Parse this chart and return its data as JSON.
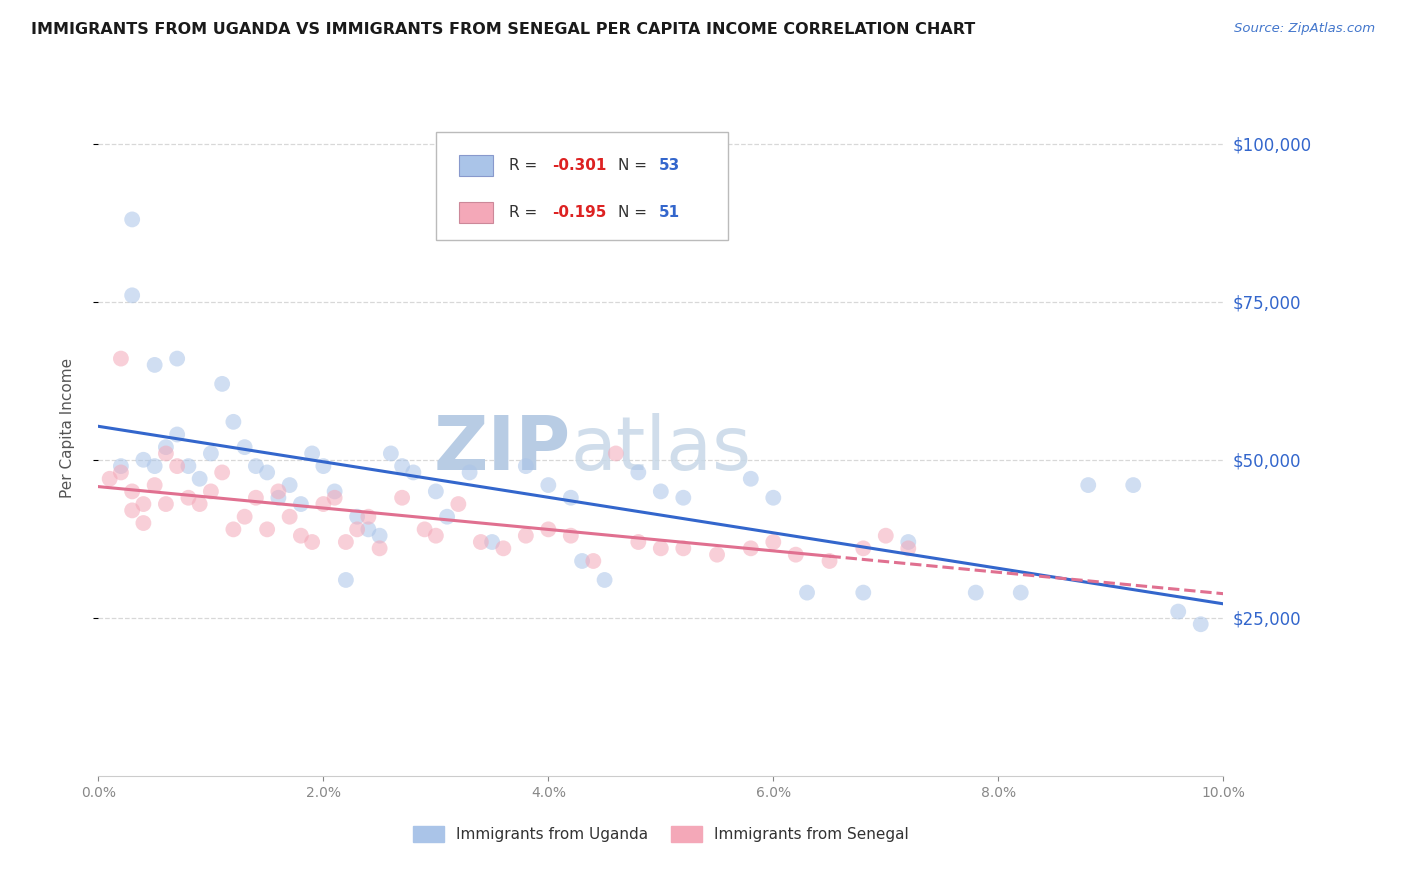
{
  "title": "IMMIGRANTS FROM UGANDA VS IMMIGRANTS FROM SENEGAL PER CAPITA INCOME CORRELATION CHART",
  "source": "Source: ZipAtlas.com",
  "ylabel": "Per Capita Income",
  "xlim": [
    0.0,
    0.1
  ],
  "ylim": [
    0,
    110000
  ],
  "yticks": [
    25000,
    50000,
    75000,
    100000
  ],
  "xticks": [
    0.0,
    0.02,
    0.04,
    0.06,
    0.08,
    0.1
  ],
  "background_color": "#ffffff",
  "grid_color": "#d8d8d8",
  "uganda_color": "#aac4e8",
  "senegal_color": "#f4a8b8",
  "uganda_line_color": "#3366cc",
  "senegal_line_color": "#e07090",
  "right_axis_color": "#3366cc",
  "uganda_R": -0.301,
  "uganda_N": 53,
  "senegal_R": -0.195,
  "senegal_N": 51,
  "legend_R_color": "#dd2222",
  "legend_N_color": "#3366cc",
  "uganda_x": [
    0.002,
    0.003,
    0.004,
    0.005,
    0.006,
    0.007,
    0.008,
    0.009,
    0.01,
    0.011,
    0.012,
    0.013,
    0.014,
    0.015,
    0.016,
    0.017,
    0.018,
    0.019,
    0.02,
    0.021,
    0.022,
    0.023,
    0.024,
    0.025,
    0.026,
    0.027,
    0.028,
    0.03,
    0.031,
    0.033,
    0.035,
    0.038,
    0.04,
    0.042,
    0.043,
    0.045,
    0.048,
    0.05,
    0.052,
    0.058,
    0.06,
    0.063,
    0.068,
    0.072,
    0.078,
    0.082,
    0.088,
    0.092,
    0.096,
    0.098,
    0.003,
    0.005,
    0.007
  ],
  "uganda_y": [
    49000,
    88000,
    50000,
    49000,
    52000,
    54000,
    49000,
    47000,
    51000,
    62000,
    56000,
    52000,
    49000,
    48000,
    44000,
    46000,
    43000,
    51000,
    49000,
    45000,
    31000,
    41000,
    39000,
    38000,
    51000,
    49000,
    48000,
    45000,
    41000,
    48000,
    37000,
    49000,
    46000,
    44000,
    34000,
    31000,
    48000,
    45000,
    44000,
    47000,
    44000,
    29000,
    29000,
    37000,
    29000,
    29000,
    46000,
    46000,
    26000,
    24000,
    76000,
    65000,
    66000
  ],
  "senegal_x": [
    0.001,
    0.002,
    0.003,
    0.004,
    0.005,
    0.006,
    0.007,
    0.008,
    0.009,
    0.01,
    0.011,
    0.012,
    0.013,
    0.014,
    0.015,
    0.016,
    0.017,
    0.018,
    0.019,
    0.02,
    0.021,
    0.022,
    0.023,
    0.024,
    0.025,
    0.027,
    0.029,
    0.03,
    0.032,
    0.034,
    0.036,
    0.038,
    0.04,
    0.042,
    0.044,
    0.046,
    0.048,
    0.05,
    0.052,
    0.055,
    0.058,
    0.06,
    0.062,
    0.065,
    0.068,
    0.07,
    0.072,
    0.002,
    0.003,
    0.004,
    0.006
  ],
  "senegal_y": [
    47000,
    66000,
    45000,
    43000,
    46000,
    51000,
    49000,
    44000,
    43000,
    45000,
    48000,
    39000,
    41000,
    44000,
    39000,
    45000,
    41000,
    38000,
    37000,
    43000,
    44000,
    37000,
    39000,
    41000,
    36000,
    44000,
    39000,
    38000,
    43000,
    37000,
    36000,
    38000,
    39000,
    38000,
    34000,
    51000,
    37000,
    36000,
    36000,
    35000,
    36000,
    37000,
    35000,
    34000,
    36000,
    38000,
    36000,
    48000,
    42000,
    40000,
    43000
  ],
  "watermark_zip": "ZIP",
  "watermark_atlas": "atlas",
  "watermark_color": "#ccd8ee",
  "marker_size": 130,
  "marker_alpha": 0.55,
  "line_width": 2.2
}
